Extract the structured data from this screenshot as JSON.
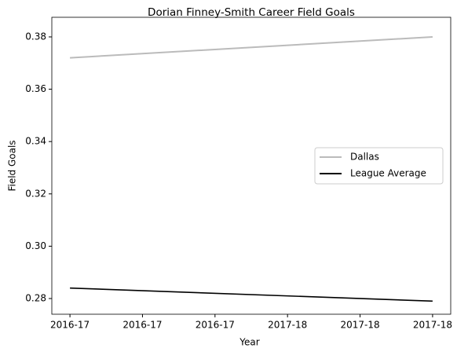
{
  "chart_data": {
    "type": "line",
    "title": "Dorian Finney-Smith Career Field Goals",
    "xlabel": "Year",
    "ylabel": "Field Goals",
    "x": [
      0,
      1
    ],
    "series": [
      {
        "name": "Dallas",
        "color": "#bbbbbb",
        "values": [
          0.372,
          0.38
        ]
      },
      {
        "name": "League Average",
        "color": "#000000",
        "values": [
          0.284,
          0.279
        ]
      }
    ],
    "xlim": [
      -0.05,
      1.05
    ],
    "xticks": [
      {
        "value": 0,
        "label": "2016-17"
      },
      {
        "value": 0.2,
        "label": "2016-17"
      },
      {
        "value": 0.4,
        "label": "2016-17"
      },
      {
        "value": 0.6,
        "label": "2017-18"
      },
      {
        "value": 0.8,
        "label": "2017-18"
      },
      {
        "value": 1,
        "label": "2017-18"
      }
    ],
    "ylim": [
      0.274,
      0.3875
    ],
    "yticks": [
      0.28,
      {
        "value": 0.3,
        "label": "0.30"
      },
      0.32,
      0.34,
      0.36,
      0.38
    ],
    "legend": "center right"
  }
}
